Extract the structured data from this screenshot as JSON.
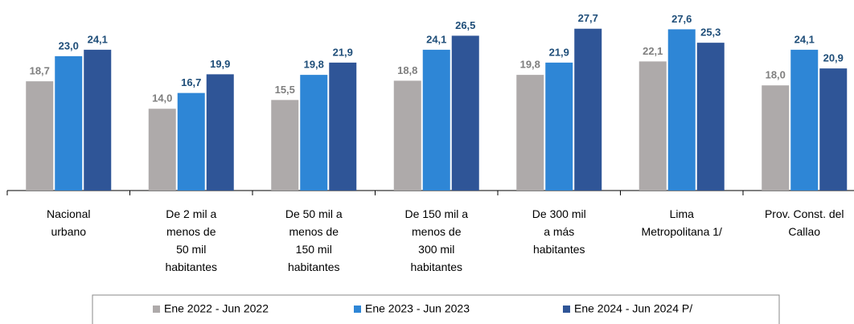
{
  "chart_data": {
    "type": "bar",
    "categories": [
      "Nacional\nurbano",
      "De 2 mil a\nmenos de\n50 mil\nhabitantes",
      "De 50 mil a\nmenos de\n150 mil\nhabitantes",
      "De 150 mil a\nmenos de\n300 mil\nhabitantes",
      "De 300 mil\na  más\nhabitantes",
      "Lima\nMetropolitana 1/",
      "Prov. Const. del\nCallao"
    ],
    "series": [
      {
        "name": "Ene 2022 - Jun 2022",
        "color": "#aeaaaa",
        "values": [
          18.7,
          14.0,
          15.5,
          18.8,
          19.8,
          22.1,
          18.0
        ],
        "value_labels": [
          "18,7",
          "14,0",
          "15,5",
          "18,8",
          "19,8",
          "22,1",
          "18,0"
        ]
      },
      {
        "name": "Ene 2023 - Jun 2023",
        "color": "#2e86d6",
        "values": [
          23.0,
          16.7,
          19.8,
          24.1,
          21.9,
          27.6,
          24.1
        ],
        "value_labels": [
          "23,0",
          "16,7",
          "19,8",
          "24,1",
          "21,9",
          "27,6",
          "24,1"
        ]
      },
      {
        "name": "Ene 2024 - Jun 2024 P/",
        "color": "#2f5597",
        "values": [
          24.1,
          19.9,
          21.9,
          26.5,
          27.7,
          25.3,
          20.9
        ],
        "value_labels": [
          "24,1",
          "19,9",
          "21,9",
          "26,5",
          "27,7",
          "25,3",
          "20,9"
        ]
      }
    ],
    "ylim": [
      0,
      30
    ]
  }
}
